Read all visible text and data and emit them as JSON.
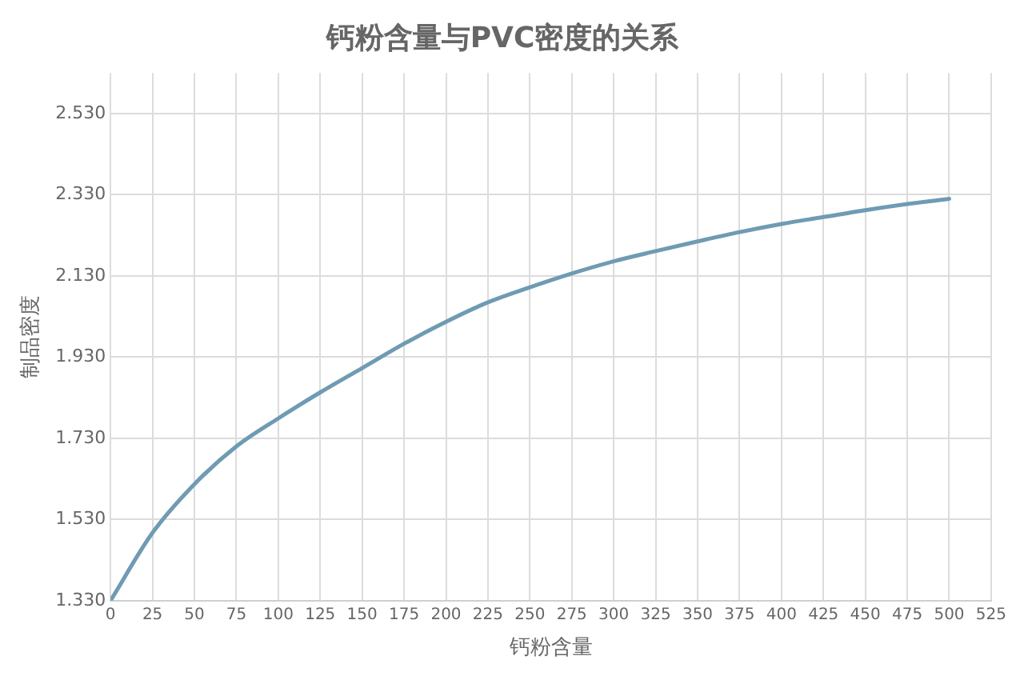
{
  "chart_data": {
    "type": "line",
    "title": "钙粉含量与PVC密度的关系",
    "xlabel": "钙粉含量",
    "ylabel": "制品密度",
    "x": [
      0,
      25,
      50,
      75,
      100,
      125,
      150,
      175,
      200,
      225,
      250,
      275,
      300,
      325,
      350,
      375,
      400,
      425,
      450,
      475,
      500
    ],
    "series": [
      {
        "color": "#6f9bb3",
        "values": [
          1.33,
          1.497,
          1.617,
          1.71,
          1.779,
          1.843,
          1.903,
          1.963,
          2.017,
          2.065,
          2.102,
          2.136,
          2.166,
          2.191,
          2.215,
          2.238,
          2.258,
          2.275,
          2.292,
          2.307,
          2.32
        ]
      }
    ],
    "xlim": [
      0,
      525
    ],
    "xticks": [
      0,
      25,
      50,
      75,
      100,
      125,
      150,
      175,
      200,
      225,
      250,
      275,
      300,
      325,
      350,
      375,
      400,
      425,
      450,
      475,
      500,
      525
    ],
    "ylim": [
      1.33,
      2.63
    ],
    "yticks": [
      {
        "value": 1.33,
        "label": "1.330"
      },
      {
        "value": 1.53,
        "label": "1.530"
      },
      {
        "value": 1.73,
        "label": "1.730"
      },
      {
        "value": 1.93,
        "label": "1.930"
      },
      {
        "value": 2.13,
        "label": "2.130"
      },
      {
        "value": 2.33,
        "label": "2.330"
      },
      {
        "value": 2.53,
        "label": "2.530"
      }
    ],
    "grid": true,
    "marker": "none",
    "line_style": "solid",
    "legend": false
  }
}
